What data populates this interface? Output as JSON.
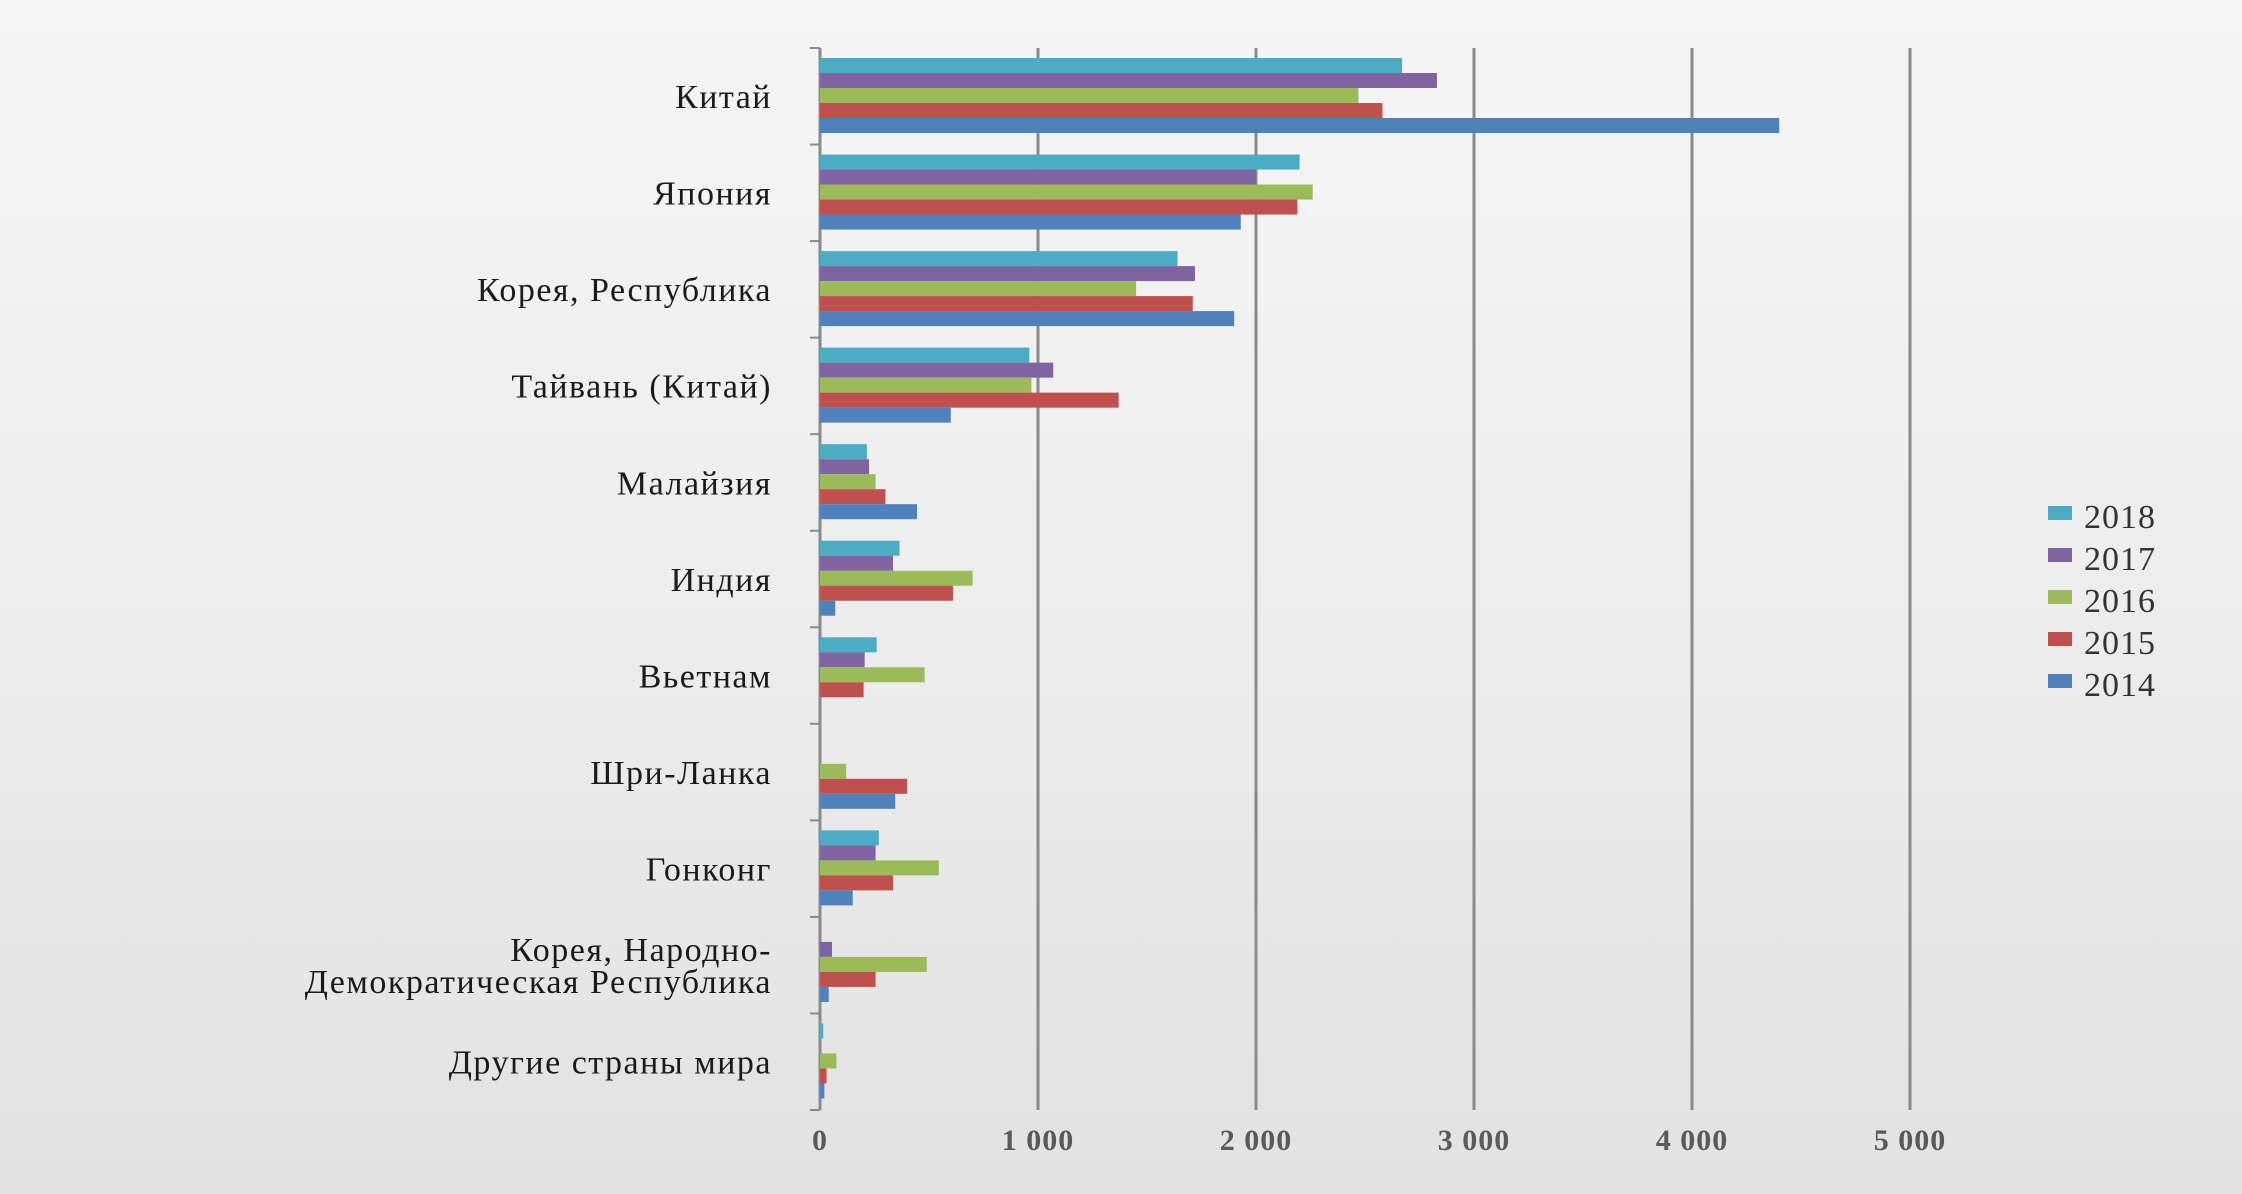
{
  "chart_data": {
    "type": "bar",
    "orientation": "horizontal",
    "categories": [
      "Китай",
      "Япония",
      "Корея, Республика",
      "Тайвань (Китай)",
      "Малайзия",
      "Индия",
      "Вьетнам",
      "Шри-Ланка",
      "Гонконг",
      "Корея, Народно-Демократическая Республика",
      "Другие страны мира"
    ],
    "category_label_lines": [
      [
        "Китай"
      ],
      [
        "Япония"
      ],
      [
        "Корея, Республика"
      ],
      [
        "Тайвань (Китай)"
      ],
      [
        "Малайзия"
      ],
      [
        "Индия"
      ],
      [
        "Вьетнам"
      ],
      [
        "Шри-Ланка"
      ],
      [
        "Гонконг"
      ],
      [
        "Корея, Народно-",
        "Демократическая Республика"
      ],
      [
        "Другие страны мира"
      ]
    ],
    "series": [
      {
        "name": "2018",
        "color": "#4BACC6",
        "values": [
          2670,
          2200,
          1640,
          960,
          215,
          365,
          260,
          0,
          270,
          0,
          15
        ]
      },
      {
        "name": "2017",
        "color": "#8064A2",
        "values": [
          2830,
          2000,
          1720,
          1070,
          225,
          335,
          205,
          0,
          255,
          55,
          0
        ]
      },
      {
        "name": "2016",
        "color": "#9BBB59",
        "values": [
          2470,
          2260,
          1450,
          970,
          255,
          700,
          480,
          120,
          545,
          490,
          75
        ]
      },
      {
        "name": "2015",
        "color": "#C0504D",
        "values": [
          2580,
          2190,
          1710,
          1370,
          300,
          610,
          200,
          400,
          335,
          255,
          30
        ]
      },
      {
        "name": "2014",
        "color": "#4F81BD",
        "values": [
          4400,
          1930,
          1900,
          600,
          445,
          70,
          0,
          345,
          150,
          40,
          20
        ]
      }
    ],
    "xlim": [
      0,
      5000
    ],
    "xticks": [
      0,
      1000,
      2000,
      3000,
      4000,
      5000
    ],
    "xtick_labels": [
      "0",
      "1 000",
      "2 000",
      "3 000",
      "4 000",
      "5 000"
    ],
    "grid": "vertical",
    "legend_position": "right",
    "title": "",
    "xlabel": "",
    "ylabel": ""
  }
}
